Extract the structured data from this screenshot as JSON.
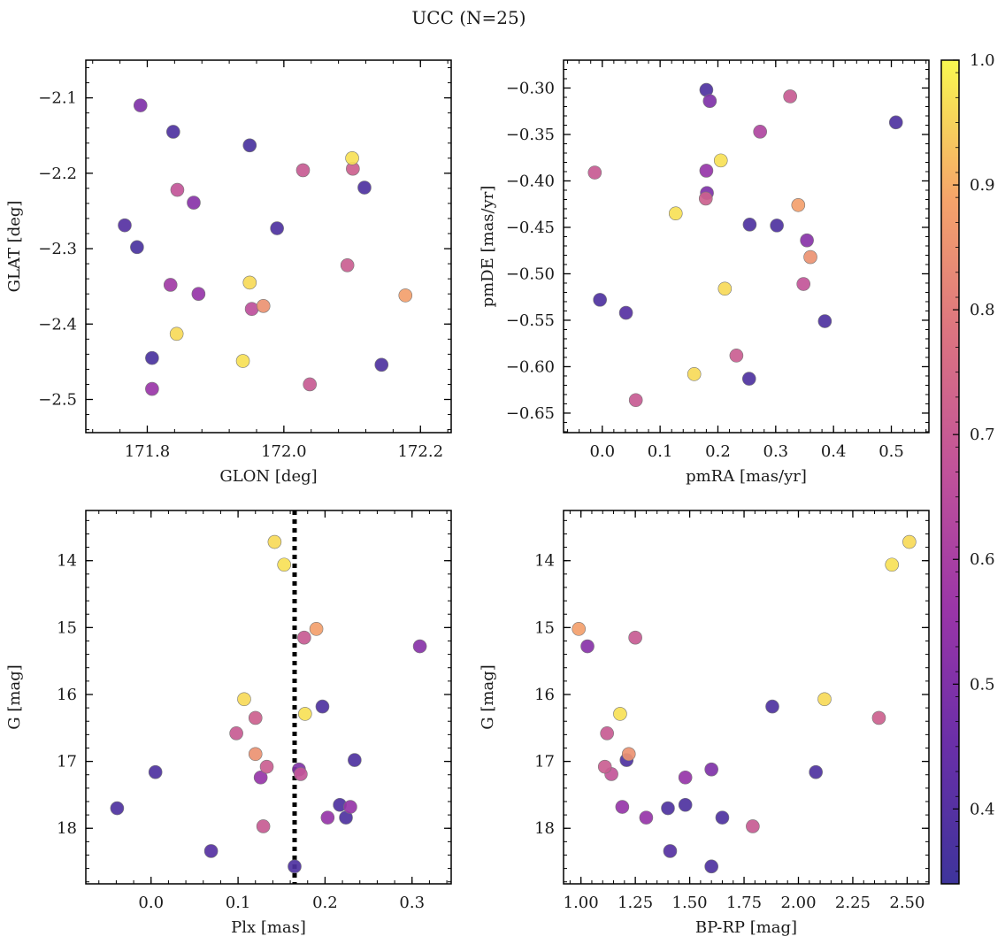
{
  "figure": {
    "title": "UCC (N=25)"
  },
  "colorbar": {
    "min": 0.34,
    "max": 1.0,
    "ticks": [
      0.4,
      0.5,
      0.6,
      0.7,
      0.8,
      0.9,
      1.0
    ],
    "tick_labels": [
      "0.4",
      "0.5",
      "0.6",
      "0.7",
      "0.8",
      "0.9",
      "1.0"
    ],
    "colormap": "plasma"
  },
  "chart_data": [
    {
      "type": "scatter",
      "panel": "top-left",
      "xlabel": "GLON [deg]",
      "ylabel": "GLAT [deg]",
      "xlim": [
        171.71,
        172.245
      ],
      "ylim": [
        -2.544,
        -2.05
      ],
      "y_inverted": false,
      "xticks": [
        171.8,
        172.0,
        172.2
      ],
      "xtick_labels": [
        "171.8",
        "172.0",
        "172.2"
      ],
      "yticks": [
        -2.1,
        -2.2,
        -2.3,
        -2.4,
        -2.5
      ],
      "ytick_labels": [
        "−2.1",
        "−2.2",
        "−2.3",
        "−2.4",
        "−2.5"
      ],
      "points": [
        {
          "x": 171.79,
          "y": -2.11,
          "c": 0.5
        },
        {
          "x": 171.838,
          "y": -2.145,
          "c": 0.38
        },
        {
          "x": 171.95,
          "y": -2.163,
          "c": 0.37
        },
        {
          "x": 172.1,
          "y": -2.18,
          "c": 0.97
        },
        {
          "x": 172.028,
          "y": -2.196,
          "c": 0.7
        },
        {
          "x": 172.101,
          "y": -2.194,
          "c": 0.72
        },
        {
          "x": 171.844,
          "y": -2.222,
          "c": 0.68
        },
        {
          "x": 171.868,
          "y": -2.239,
          "c": 0.52
        },
        {
          "x": 172.118,
          "y": -2.219,
          "c": 0.38
        },
        {
          "x": 171.767,
          "y": -2.269,
          "c": 0.4
        },
        {
          "x": 171.99,
          "y": -2.273,
          "c": 0.38
        },
        {
          "x": 171.785,
          "y": -2.298,
          "c": 0.37
        },
        {
          "x": 172.093,
          "y": -2.322,
          "c": 0.71
        },
        {
          "x": 171.834,
          "y": -2.348,
          "c": 0.58
        },
        {
          "x": 171.875,
          "y": -2.36,
          "c": 0.55
        },
        {
          "x": 171.95,
          "y": -2.345,
          "c": 0.96
        },
        {
          "x": 172.178,
          "y": -2.362,
          "c": 0.88
        },
        {
          "x": 171.97,
          "y": -2.376,
          "c": 0.85
        },
        {
          "x": 171.953,
          "y": -2.38,
          "c": 0.66
        },
        {
          "x": 171.843,
          "y": -2.413,
          "c": 0.96
        },
        {
          "x": 171.807,
          "y": -2.445,
          "c": 0.37
        },
        {
          "x": 171.94,
          "y": -2.449,
          "c": 0.97
        },
        {
          "x": 172.143,
          "y": -2.454,
          "c": 0.38
        },
        {
          "x": 172.038,
          "y": -2.48,
          "c": 0.7
        },
        {
          "x": 171.807,
          "y": -2.486,
          "c": 0.56
        }
      ]
    },
    {
      "type": "scatter",
      "panel": "top-right",
      "xlabel": "pmRA [mas/yr]",
      "ylabel": "pmDE [mas/yr]",
      "xlim": [
        -0.067,
        0.565
      ],
      "ylim": [
        -0.671,
        -0.27
      ],
      "y_inverted": false,
      "xticks": [
        0.0,
        0.1,
        0.2,
        0.3,
        0.4,
        0.5
      ],
      "xtick_labels": [
        "0.0",
        "0.1",
        "0.2",
        "0.3",
        "0.4",
        "0.5"
      ],
      "yticks": [
        -0.3,
        -0.35,
        -0.4,
        -0.45,
        -0.5,
        -0.55,
        -0.6,
        -0.65
      ],
      "ytick_labels": [
        "−0.30",
        "−0.35",
        "−0.40",
        "−0.45",
        "−0.50",
        "−0.55",
        "−0.60",
        "−0.65"
      ],
      "points": [
        {
          "x": 0.18,
          "y": -0.302,
          "c": 0.38
        },
        {
          "x": 0.325,
          "y": -0.309,
          "c": 0.7
        },
        {
          "x": 0.186,
          "y": -0.314,
          "c": 0.5
        },
        {
          "x": 0.508,
          "y": -0.337,
          "c": 0.38
        },
        {
          "x": 0.273,
          "y": -0.347,
          "c": 0.62
        },
        {
          "x": 0.205,
          "y": -0.378,
          "c": 0.97
        },
        {
          "x": -0.013,
          "y": -0.391,
          "c": 0.7
        },
        {
          "x": 0.18,
          "y": -0.389,
          "c": 0.55
        },
        {
          "x": 0.181,
          "y": -0.413,
          "c": 0.5
        },
        {
          "x": 0.179,
          "y": -0.419,
          "c": 0.72
        },
        {
          "x": 0.339,
          "y": -0.426,
          "c": 0.88
        },
        {
          "x": 0.127,
          "y": -0.435,
          "c": 0.97
        },
        {
          "x": 0.255,
          "y": -0.447,
          "c": 0.38
        },
        {
          "x": 0.302,
          "y": -0.448,
          "c": 0.38
        },
        {
          "x": 0.354,
          "y": -0.464,
          "c": 0.52
        },
        {
          "x": 0.36,
          "y": -0.482,
          "c": 0.85
        },
        {
          "x": 0.348,
          "y": -0.511,
          "c": 0.68
        },
        {
          "x": 0.212,
          "y": -0.516,
          "c": 0.96
        },
        {
          "x": -0.004,
          "y": -0.528,
          "c": 0.38
        },
        {
          "x": 0.041,
          "y": -0.542,
          "c": 0.4
        },
        {
          "x": 0.385,
          "y": -0.551,
          "c": 0.38
        },
        {
          "x": 0.232,
          "y": -0.588,
          "c": 0.71
        },
        {
          "x": 0.159,
          "y": -0.608,
          "c": 0.96
        },
        {
          "x": 0.254,
          "y": -0.613,
          "c": 0.38
        },
        {
          "x": 0.058,
          "y": -0.636,
          "c": 0.7
        }
      ]
    },
    {
      "type": "scatter",
      "panel": "bottom-left",
      "xlabel": "Plx [mas]",
      "ylabel": "G [mag]",
      "xlim": [
        -0.075,
        0.345
      ],
      "ylim": [
        18.83,
        13.25
      ],
      "y_inverted": true,
      "xticks": [
        0.0,
        0.1,
        0.2,
        0.3
      ],
      "xtick_labels": [
        "0.0",
        "0.1",
        "0.2",
        "0.3"
      ],
      "yticks": [
        14,
        15,
        16,
        17,
        18
      ],
      "ytick_labels": [
        "14",
        "15",
        "16",
        "17",
        "18"
      ],
      "vline": {
        "x": 0.165,
        "style": "dotted"
      },
      "points": [
        {
          "x": 0.142,
          "y": 13.72,
          "c": 0.96
        },
        {
          "x": 0.153,
          "y": 14.06,
          "c": 0.97
        },
        {
          "x": 0.19,
          "y": 15.02,
          "c": 0.88
        },
        {
          "x": 0.176,
          "y": 15.15,
          "c": 0.7
        },
        {
          "x": 0.309,
          "y": 15.28,
          "c": 0.52
        },
        {
          "x": 0.107,
          "y": 16.07,
          "c": 0.96
        },
        {
          "x": 0.197,
          "y": 16.18,
          "c": 0.38
        },
        {
          "x": 0.177,
          "y": 16.29,
          "c": 0.97
        },
        {
          "x": 0.12,
          "y": 16.35,
          "c": 0.72
        },
        {
          "x": 0.098,
          "y": 16.58,
          "c": 0.7
        },
        {
          "x": 0.12,
          "y": 16.89,
          "c": 0.85
        },
        {
          "x": 0.234,
          "y": 16.98,
          "c": 0.38
        },
        {
          "x": 0.133,
          "y": 17.08,
          "c": 0.71
        },
        {
          "x": 0.172,
          "y": 17.19,
          "c": 0.68
        },
        {
          "x": 0.005,
          "y": 17.16,
          "c": 0.38
        },
        {
          "x": 0.17,
          "y": 17.12,
          "c": 0.5
        },
        {
          "x": 0.126,
          "y": 17.24,
          "c": 0.55
        },
        {
          "x": 0.217,
          "y": 17.65,
          "c": 0.38
        },
        {
          "x": 0.229,
          "y": 17.68,
          "c": 0.55
        },
        {
          "x": -0.039,
          "y": 17.7,
          "c": 0.38
        },
        {
          "x": 0.224,
          "y": 17.84,
          "c": 0.38
        },
        {
          "x": 0.203,
          "y": 17.84,
          "c": 0.55
        },
        {
          "x": 0.129,
          "y": 17.97,
          "c": 0.7
        },
        {
          "x": 0.069,
          "y": 18.34,
          "c": 0.4
        },
        {
          "x": 0.165,
          "y": 18.57,
          "c": 0.38
        }
      ]
    },
    {
      "type": "scatter",
      "panel": "bottom-right",
      "xlabel": "BP-RP [mag]",
      "ylabel": "G [mag]",
      "xlim": [
        0.92,
        2.6
      ],
      "ylim": [
        18.83,
        13.25
      ],
      "y_inverted": true,
      "xticks": [
        1.0,
        1.25,
        1.5,
        1.75,
        2.0,
        2.25,
        2.5
      ],
      "xtick_labels": [
        "1.00",
        "1.25",
        "1.50",
        "1.75",
        "2.00",
        "2.25",
        "2.50"
      ],
      "yticks": [
        14,
        15,
        16,
        17,
        18
      ],
      "ytick_labels": [
        "14",
        "15",
        "16",
        "17",
        "18"
      ],
      "points": [
        {
          "x": 2.51,
          "y": 13.72,
          "c": 0.96
        },
        {
          "x": 2.43,
          "y": 14.06,
          "c": 0.97
        },
        {
          "x": 0.99,
          "y": 15.02,
          "c": 0.88
        },
        {
          "x": 1.25,
          "y": 15.15,
          "c": 0.7
        },
        {
          "x": 1.03,
          "y": 15.28,
          "c": 0.52
        },
        {
          "x": 2.12,
          "y": 16.07,
          "c": 0.96
        },
        {
          "x": 1.88,
          "y": 16.18,
          "c": 0.38
        },
        {
          "x": 1.18,
          "y": 16.29,
          "c": 0.97
        },
        {
          "x": 2.37,
          "y": 16.35,
          "c": 0.72
        },
        {
          "x": 1.12,
          "y": 16.58,
          "c": 0.7
        },
        {
          "x": 1.22,
          "y": 16.89,
          "c": 0.85
        },
        {
          "x": 1.21,
          "y": 16.98,
          "c": 0.38
        },
        {
          "x": 1.11,
          "y": 17.08,
          "c": 0.71
        },
        {
          "x": 1.14,
          "y": 17.19,
          "c": 0.68
        },
        {
          "x": 2.08,
          "y": 17.16,
          "c": 0.38
        },
        {
          "x": 1.6,
          "y": 17.12,
          "c": 0.5
        },
        {
          "x": 1.48,
          "y": 17.24,
          "c": 0.55
        },
        {
          "x": 1.48,
          "y": 17.65,
          "c": 0.38
        },
        {
          "x": 1.19,
          "y": 17.68,
          "c": 0.55
        },
        {
          "x": 1.4,
          "y": 17.7,
          "c": 0.38
        },
        {
          "x": 1.65,
          "y": 17.84,
          "c": 0.38
        },
        {
          "x": 1.3,
          "y": 17.84,
          "c": 0.55
        },
        {
          "x": 1.79,
          "y": 17.97,
          "c": 0.7
        },
        {
          "x": 1.41,
          "y": 18.34,
          "c": 0.4
        },
        {
          "x": 1.6,
          "y": 18.57,
          "c": 0.38
        }
      ]
    }
  ]
}
